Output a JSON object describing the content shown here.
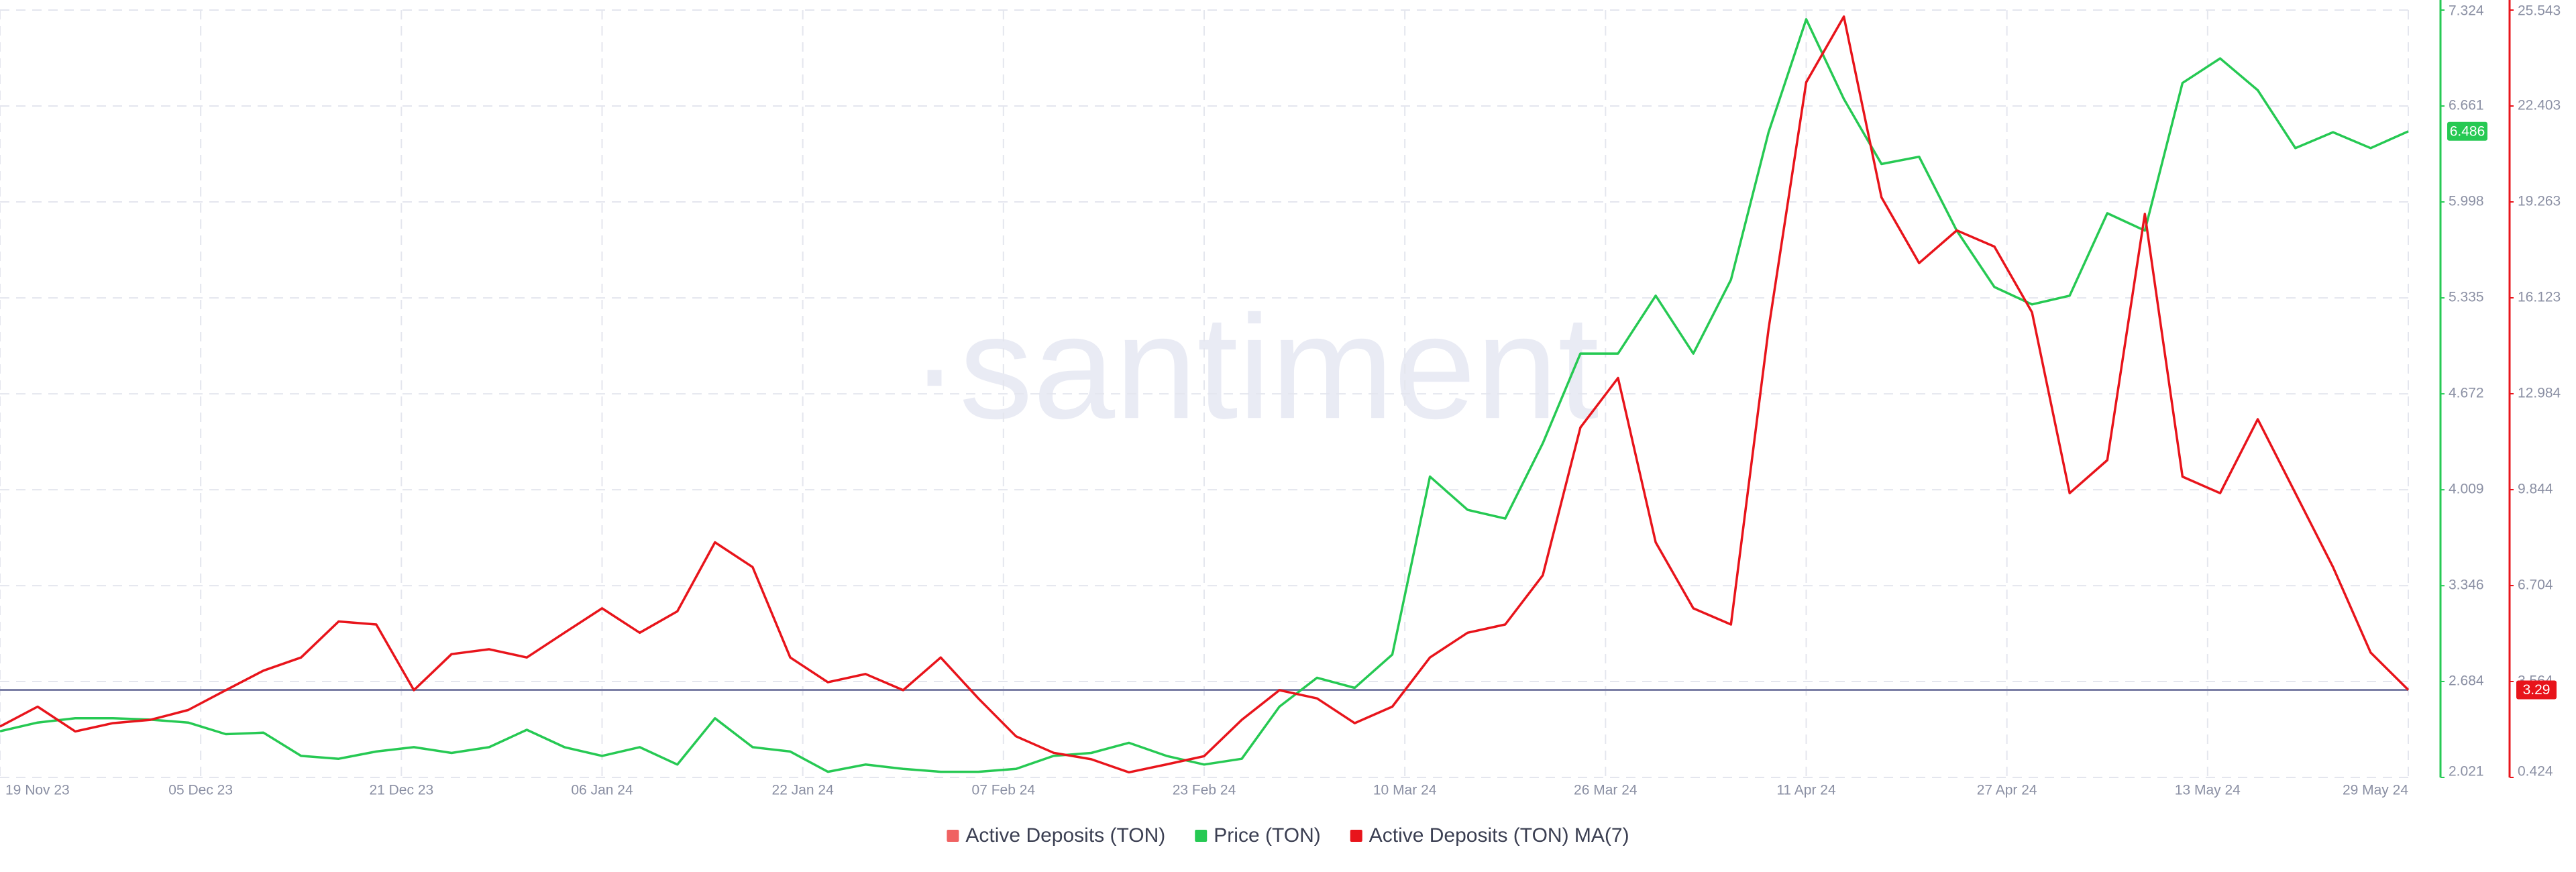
{
  "chart_data": {
    "type": "line",
    "watermark": "·santiment",
    "x": [
      "2023-11-19",
      "2023-11-22",
      "2023-11-25",
      "2023-11-28",
      "2023-12-01",
      "2023-12-04",
      "2023-12-07",
      "2023-12-10",
      "2023-12-13",
      "2023-12-16",
      "2023-12-19",
      "2023-12-22",
      "2023-12-25",
      "2023-12-28",
      "2023-12-31",
      "2024-01-03",
      "2024-01-06",
      "2024-01-09",
      "2024-01-12",
      "2024-01-15",
      "2024-01-18",
      "2024-01-21",
      "2024-01-24",
      "2024-01-27",
      "2024-01-30",
      "2024-02-02",
      "2024-02-05",
      "2024-02-08",
      "2024-02-11",
      "2024-02-14",
      "2024-02-17",
      "2024-02-20",
      "2024-02-23",
      "2024-02-26",
      "2024-02-29",
      "2024-03-03",
      "2024-03-06",
      "2024-03-09",
      "2024-03-12",
      "2024-03-15",
      "2024-03-18",
      "2024-03-21",
      "2024-03-24",
      "2024-03-27",
      "2024-03-30",
      "2024-04-02",
      "2024-04-05",
      "2024-04-08",
      "2024-04-11",
      "2024-04-14",
      "2024-04-17",
      "2024-04-20",
      "2024-04-23",
      "2024-04-26",
      "2024-04-29",
      "2024-05-02",
      "2024-05-05",
      "2024-05-08",
      "2024-05-11",
      "2024-05-14",
      "2024-05-17",
      "2024-05-20",
      "2024-05-23",
      "2024-05-26",
      "2024-05-29"
    ],
    "xlim": [
      "2023-11-19",
      "2024-05-29"
    ],
    "xticks": [
      {
        "value": "2023-11-19",
        "label": "19 Nov 23"
      },
      {
        "value": "2023-12-05",
        "label": "05 Dec 23"
      },
      {
        "value": "2023-12-21",
        "label": "21 Dec 23"
      },
      {
        "value": "2024-01-06",
        "label": "06 Jan 24"
      },
      {
        "value": "2024-01-22",
        "label": "22 Jan 24"
      },
      {
        "value": "2024-02-07",
        "label": "07 Feb 24"
      },
      {
        "value": "2024-02-23",
        "label": "23 Feb 24"
      },
      {
        "value": "2024-03-10",
        "label": "10 Mar 24"
      },
      {
        "value": "2024-03-26",
        "label": "26 Mar 24"
      },
      {
        "value": "2024-04-11",
        "label": "11 Apr 24"
      },
      {
        "value": "2024-04-27",
        "label": "27 Apr 24"
      },
      {
        "value": "2024-05-13",
        "label": "13 May 24"
      },
      {
        "value": "2024-05-29",
        "label": "29 May 24"
      }
    ],
    "ylim": [
      2.021,
      7.324
    ],
    "yticks": [
      2.021,
      2.684,
      3.346,
      4.009,
      4.672,
      5.335,
      5.998,
      6.661,
      7.324
    ],
    "y2lim": [
      0.424,
      25.543
    ],
    "y2ticks": [
      0.424,
      3.564,
      6.704,
      9.844,
      12.984,
      16.123,
      19.263,
      22.403,
      25.543
    ],
    "grid": true,
    "series": [
      {
        "name": "Active Deposits (TON)",
        "color": "#f06262",
        "visible": false
      },
      {
        "name": "Price (TON)",
        "color": "#26c953",
        "axis": "y",
        "values": [
          2.34,
          2.4,
          2.43,
          2.43,
          2.42,
          2.4,
          2.32,
          2.33,
          2.17,
          2.15,
          2.2,
          2.23,
          2.19,
          2.23,
          2.35,
          2.23,
          2.17,
          2.23,
          2.11,
          2.43,
          2.23,
          2.2,
          2.06,
          2.11,
          2.08,
          2.06,
          2.06,
          2.08,
          2.17,
          2.19,
          2.26,
          2.17,
          2.11,
          2.15,
          2.51,
          2.71,
          2.64,
          2.87,
          4.1,
          3.87,
          3.81,
          4.33,
          4.95,
          4.95,
          5.35,
          4.95,
          5.46,
          6.48,
          7.26,
          6.71,
          6.26,
          6.31,
          5.8,
          5.41,
          5.29,
          5.35,
          5.92,
          5.8,
          6.82,
          6.99,
          6.77,
          6.37,
          6.48,
          6.37,
          6.486
        ]
      },
      {
        "name": "Active Deposits (TON) MA(7)",
        "color": "#e8141b",
        "axis": "y2",
        "values": [
          2.09,
          2.74,
          1.93,
          2.2,
          2.31,
          2.63,
          3.28,
          3.92,
          4.35,
          5.53,
          5.43,
          3.28,
          4.46,
          4.62,
          4.35,
          5.16,
          5.96,
          5.16,
          5.86,
          8.12,
          7.31,
          4.35,
          3.54,
          3.81,
          3.28,
          4.35,
          3.01,
          1.77,
          1.23,
          1.02,
          0.59,
          0.85,
          1.12,
          2.31,
          3.28,
          3.01,
          2.2,
          2.74,
          4.35,
          5.16,
          5.43,
          7.04,
          11.88,
          13.5,
          8.12,
          5.96,
          5.43,
          15.11,
          23.18,
          25.33,
          19.41,
          17.26,
          18.33,
          17.8,
          15.65,
          9.73,
          10.81,
          18.87,
          10.27,
          9.73,
          12.15,
          9.73,
          7.31,
          4.51,
          3.29
        ]
      }
    ]
  }
}
